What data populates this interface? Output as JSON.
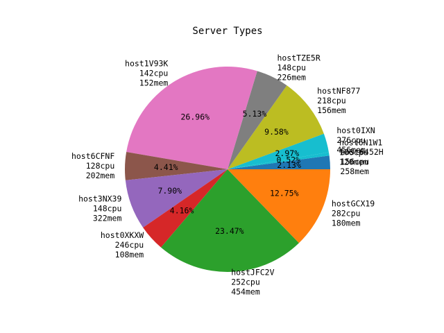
{
  "chart_data": {
    "type": "pie",
    "title": "Server Types",
    "start_angle": 0,
    "direction": "counterclockwise",
    "slices": [
      {
        "label": "host6452H",
        "lines": [
          "host6452H",
          "156cpu",
          "258mem"
        ],
        "percent": 2.13,
        "pct_label": "2.13%",
        "color": "#1f77b4"
      },
      {
        "label": "host6N1W1",
        "lines": [
          "host6N1W1",
          "106cpu",
          "120mem"
        ],
        "percent": 0.52,
        "pct_label": "0.52%",
        "color": "#17becf"
      },
      {
        "label": "host0IXN",
        "lines": [
          "host0IXN",
          "276cpu",
          "456mem"
        ],
        "percent": 2.97,
        "pct_label": "2.97%",
        "color": "#17becf"
      },
      {
        "label": "hostNF877",
        "lines": [
          "hostNF877",
          "218cpu",
          "156mem"
        ],
        "percent": 9.58,
        "pct_label": "9.58%",
        "color": "#bcbd22"
      },
      {
        "label": "hostTZE5R",
        "lines": [
          "hostTZE5R",
          "148cpu",
          "226mem"
        ],
        "percent": 5.13,
        "pct_label": "5.13%",
        "color": "#7f7f7f"
      },
      {
        "label": "host1V93K",
        "lines": [
          "host1V93K",
          "142cpu",
          "152mem"
        ],
        "percent": 26.96,
        "pct_label": "26.96%",
        "color": "#e377c2"
      },
      {
        "label": "host6CFNF",
        "lines": [
          "host6CFNF",
          "128cpu",
          "202mem"
        ],
        "percent": 4.41,
        "pct_label": "4.41%",
        "color": "#8c564b"
      },
      {
        "label": "host3NX39",
        "lines": [
          "host3NX39",
          "148cpu",
          "322mem"
        ],
        "percent": 7.9,
        "pct_label": "7.90%",
        "color": "#9467bd"
      },
      {
        "label": "host0XKXW",
        "lines": [
          "host0XKXW",
          "246cpu",
          "108mem"
        ],
        "percent": 4.16,
        "pct_label": "4.16%",
        "color": "#d62728"
      },
      {
        "label": "hostJFC2V",
        "lines": [
          "hostJFC2V",
          "252cpu",
          "454mem"
        ],
        "percent": 23.47,
        "pct_label": "23.47%",
        "color": "#2ca02c"
      },
      {
        "label": "hostGCX19",
        "lines": [
          "hostGCX19",
          "282cpu",
          "180mem"
        ],
        "percent": 12.75,
        "pct_label": "12.75%",
        "color": "#ff7f0e"
      }
    ]
  }
}
